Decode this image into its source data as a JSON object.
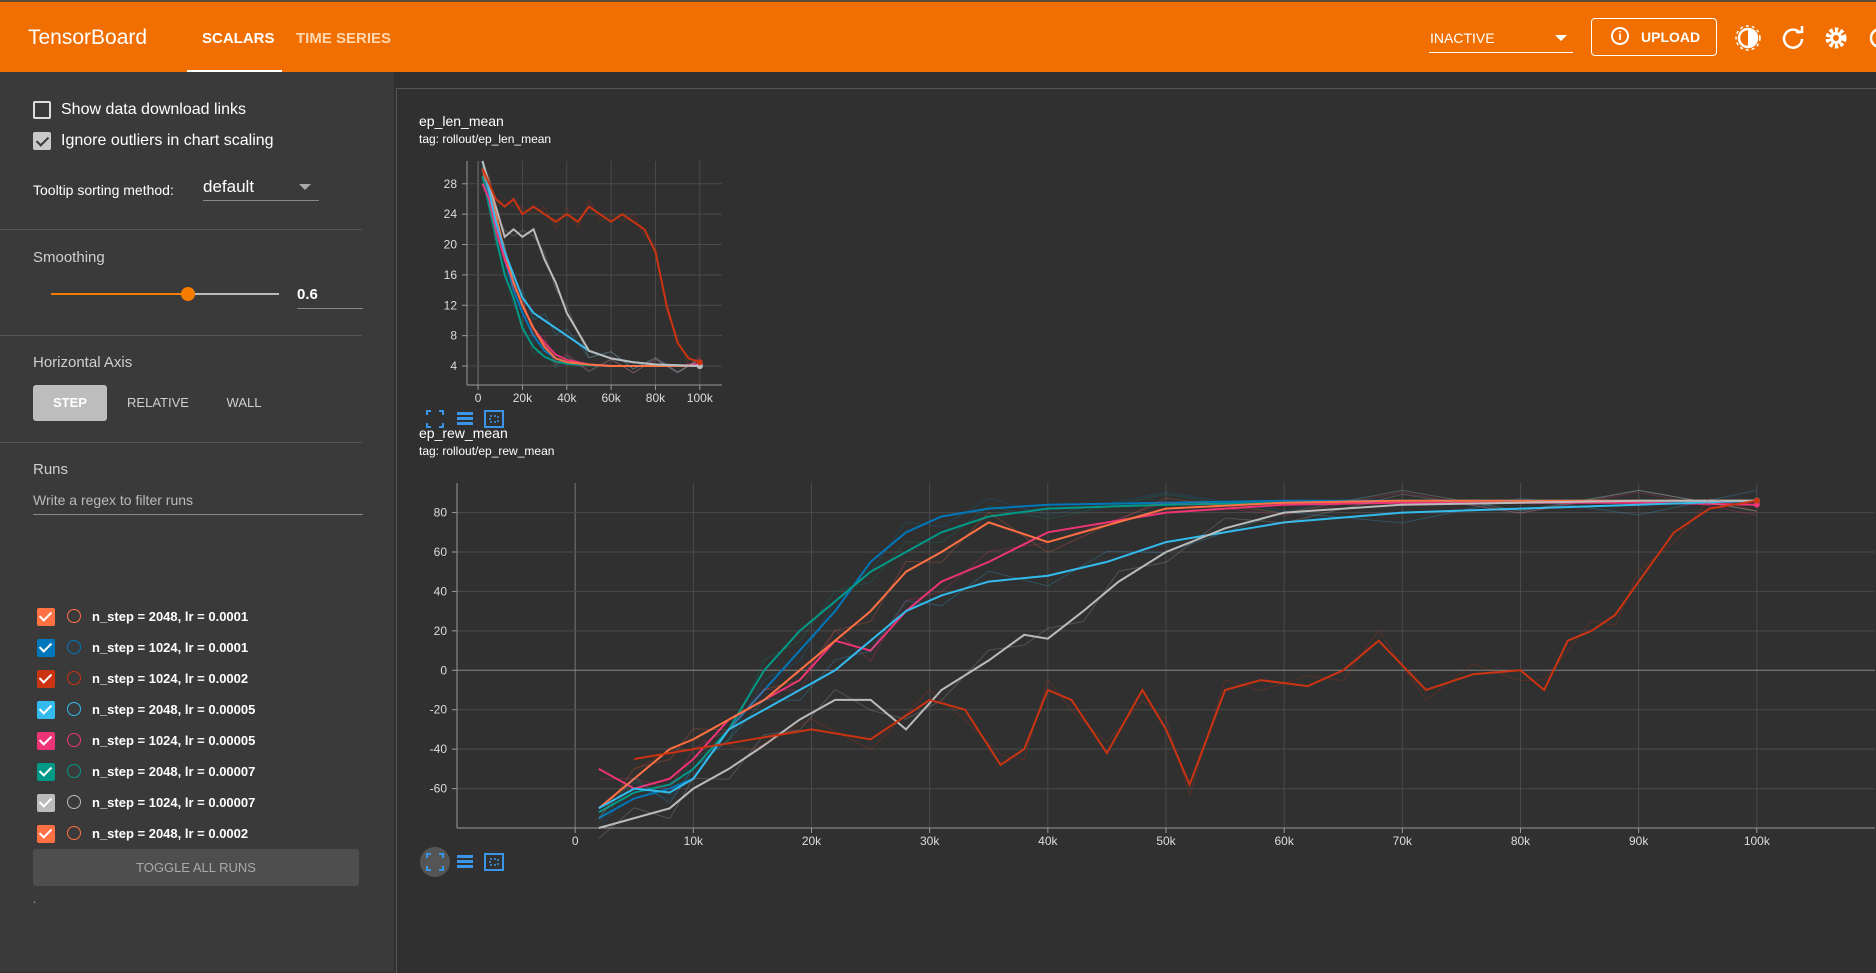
{
  "header": {
    "logo": "TensorBoard",
    "tabs": [
      "SCALARS",
      "TIME SERIES"
    ],
    "active_tab": "SCALARS",
    "status_select": "INACTIVE",
    "upload_label": "UPLOAD",
    "brand_color": "#f06f00"
  },
  "sidebar": {
    "show_links_label": "Show data download links",
    "show_links_checked": false,
    "ignore_outliers_label": "Ignore outliers in chart scaling",
    "ignore_outliers_checked": true,
    "tooltip_label": "Tooltip sorting method:",
    "tooltip_value": "default",
    "smoothing_label": "Smoothing",
    "smoothing_value": "0.6",
    "smoothing_fraction": 0.6,
    "haxis_label": "Horizontal Axis",
    "haxis_options": [
      "STEP",
      "RELATIVE",
      "WALL"
    ],
    "haxis_selected": "STEP",
    "runs_label": "Runs",
    "runs_filter_placeholder": "Write a regex to filter runs",
    "runs": [
      {
        "label": "n_step = 2048, lr = 0.0001",
        "color": "#ff7043"
      },
      {
        "label": "n_step = 1024, lr = 0.0001",
        "color": "#0077bb"
      },
      {
        "label": "n_step = 1024, lr = 0.0002",
        "color": "#cc3311"
      },
      {
        "label": "n_step = 2048, lr = 0.00005",
        "color": "#33bbee"
      },
      {
        "label": "n_step = 1024, lr = 0.00005",
        "color": "#ee3377"
      },
      {
        "label": "n_step = 2048, lr = 0.00007",
        "color": "#009988"
      },
      {
        "label": "n_step = 1024, lr = 0.00007",
        "color": "#bbbbbb"
      },
      {
        "label": "n_step = 2048, lr = 0.0002",
        "color": "#ff7043"
      }
    ],
    "toggle_all_label": "TOGGLE ALL RUNS",
    "footer_dot": "."
  },
  "cards": [
    {
      "title": "ep_len_mean",
      "tag": "tag: rollout/ep_len_mean"
    },
    {
      "title": "ep_rew_mean",
      "tag": "tag: rollout/ep_rew_mean"
    }
  ],
  "chart_data": [
    {
      "type": "line",
      "title": "ep_len_mean",
      "x_ticks": [
        "0",
        "20k",
        "40k",
        "60k",
        "80k",
        "100k"
      ],
      "y_ticks": [
        "4",
        "8",
        "12",
        "16",
        "20",
        "24",
        "28"
      ],
      "xlim": [
        -5000,
        110000
      ],
      "ylim": [
        1.5,
        31
      ],
      "grid": true,
      "series": [
        {
          "color": "#0077bb",
          "x": [
            2000,
            5000,
            8000,
            12000,
            16000,
            20000,
            25000,
            30000,
            35000,
            40000,
            50000,
            60000,
            70000,
            80000,
            90000,
            100000
          ],
          "y": [
            30,
            26,
            22,
            18,
            14,
            11,
            8,
            6,
            5,
            4.5,
            4.2,
            4,
            4,
            4,
            4,
            4
          ]
        },
        {
          "color": "#009988",
          "x": [
            2000,
            5000,
            8000,
            12000,
            16000,
            20000,
            25000,
            30000,
            35000,
            40000,
            50000,
            60000,
            70000,
            80000,
            90000,
            100000
          ],
          "y": [
            29,
            25,
            21,
            16,
            13,
            9,
            6.5,
            5.2,
            4.6,
            4.3,
            4.1,
            4,
            4,
            4,
            4,
            4
          ]
        },
        {
          "color": "#ee3377",
          "x": [
            2000,
            5000,
            8000,
            12000,
            16000,
            20000,
            25000,
            30000,
            35000,
            40000,
            50000,
            60000,
            70000,
            80000,
            90000,
            100000
          ],
          "y": [
            28,
            26,
            22,
            18,
            15,
            12,
            9,
            7,
            5.5,
            4.8,
            4.2,
            4,
            4,
            4,
            4,
            4.3
          ]
        },
        {
          "color": "#ff7043",
          "x": [
            2000,
            5000,
            8000,
            12000,
            16000,
            20000,
            25000,
            30000,
            35000,
            40000,
            50000,
            60000,
            70000,
            80000,
            90000,
            100000
          ],
          "y": [
            30,
            27,
            24,
            19,
            15,
            12,
            9,
            6.5,
            5,
            4.5,
            4.2,
            4,
            4,
            4,
            4,
            4
          ]
        },
        {
          "color": "#33bbee",
          "x": [
            2000,
            5000,
            8000,
            12000,
            16000,
            20000,
            25000,
            30000,
            35000,
            40000,
            50000,
            60000,
            70000,
            80000,
            90000,
            100000
          ],
          "y": [
            31,
            27,
            23,
            19,
            16,
            13,
            11,
            10,
            9,
            8,
            6,
            5,
            4.5,
            4.2,
            4.1,
            4
          ]
        },
        {
          "color": "#bbbbbb",
          "x": [
            2000,
            5000,
            8000,
            12000,
            16000,
            20000,
            25000,
            30000,
            35000,
            40000,
            50000,
            60000,
            70000,
            80000,
            90000,
            100000
          ],
          "y": [
            31,
            28,
            25,
            21,
            22,
            21,
            22,
            18,
            15,
            11,
            6,
            5,
            4.5,
            4.2,
            4.1,
            4
          ]
        },
        {
          "color": "#cc3311",
          "x": [
            2000,
            5000,
            8000,
            12000,
            16000,
            20000,
            25000,
            30000,
            35000,
            40000,
            45000,
            50000,
            55000,
            60000,
            65000,
            70000,
            75000,
            80000,
            85000,
            90000,
            95000,
            100000
          ],
          "y": [
            30,
            28,
            26,
            25,
            26,
            24,
            25,
            24,
            23,
            24,
            23,
            25,
            24,
            23,
            24,
            23,
            22,
            19,
            12,
            7,
            5,
            4.5
          ]
        }
      ]
    },
    {
      "type": "line",
      "title": "ep_rew_mean",
      "x_ticks": [
        "0",
        "10k",
        "20k",
        "30k",
        "40k",
        "50k",
        "60k",
        "70k",
        "80k",
        "90k",
        "100k"
      ],
      "y_ticks": [
        "-60",
        "-40",
        "-20",
        "0",
        "20",
        "40",
        "60",
        "80"
      ],
      "xlim": [
        -10000,
        110000
      ],
      "ylim": [
        -80,
        95
      ],
      "grid": true,
      "series": [
        {
          "color": "#0077bb",
          "x": [
            2000,
            5000,
            8000,
            10000,
            13000,
            16000,
            19000,
            22000,
            25000,
            28000,
            31000,
            35000,
            40000,
            50000,
            60000,
            70000,
            80000,
            90000,
            100000
          ],
          "y": [
            -75,
            -65,
            -60,
            -55,
            -30,
            -10,
            10,
            30,
            55,
            70,
            78,
            82,
            84,
            85,
            86,
            86,
            86,
            86,
            86
          ]
        },
        {
          "color": "#009988",
          "x": [
            2000,
            5000,
            8000,
            10000,
            13000,
            16000,
            19000,
            22000,
            25000,
            28000,
            31000,
            35000,
            40000,
            50000,
            60000,
            70000,
            80000,
            90000,
            100000
          ],
          "y": [
            -72,
            -62,
            -58,
            -50,
            -30,
            0,
            20,
            35,
            50,
            60,
            70,
            78,
            82,
            84,
            85,
            86,
            86,
            86,
            86
          ]
        },
        {
          "color": "#ee3377",
          "x": [
            2000,
            5000,
            8000,
            10000,
            13000,
            16000,
            19000,
            22000,
            25000,
            28000,
            31000,
            35000,
            40000,
            50000,
            60000,
            70000,
            80000,
            90000,
            100000
          ],
          "y": [
            -50,
            -60,
            -55,
            -45,
            -25,
            -15,
            -5,
            15,
            10,
            30,
            45,
            55,
            70,
            80,
            84,
            85,
            85,
            85,
            84
          ]
        },
        {
          "color": "#ff7043",
          "x": [
            2000,
            5000,
            8000,
            10000,
            13000,
            16000,
            19000,
            22000,
            25000,
            28000,
            31000,
            35000,
            40000,
            50000,
            60000,
            70000,
            80000,
            90000,
            100000
          ],
          "y": [
            -70,
            -55,
            -40,
            -35,
            -25,
            -15,
            0,
            15,
            30,
            50,
            60,
            75,
            65,
            82,
            85,
            86,
            86,
            86,
            86
          ]
        },
        {
          "color": "#33bbee",
          "x": [
            2000,
            5000,
            8000,
            10000,
            13000,
            16000,
            19000,
            22000,
            25000,
            28000,
            31000,
            35000,
            40000,
            45000,
            50000,
            60000,
            70000,
            80000,
            90000,
            100000
          ],
          "y": [
            -70,
            -60,
            -62,
            -55,
            -30,
            -20,
            -10,
            0,
            15,
            30,
            38,
            45,
            48,
            55,
            65,
            75,
            80,
            82,
            84,
            86
          ]
        },
        {
          "color": "#bbbbbb",
          "x": [
            2000,
            5000,
            8000,
            10000,
            13000,
            16000,
            19000,
            22000,
            25000,
            28000,
            31000,
            35000,
            38000,
            40000,
            43000,
            46000,
            50000,
            55000,
            60000,
            70000,
            80000,
            90000,
            100000
          ],
          "y": [
            -80,
            -75,
            -70,
            -60,
            -50,
            -38,
            -25,
            -15,
            -15,
            -30,
            -10,
            5,
            18,
            16,
            30,
            45,
            60,
            72,
            80,
            84,
            85,
            86,
            86
          ]
        },
        {
          "color": "#cc3311",
          "x": [
            5000,
            10000,
            15000,
            20000,
            25000,
            30000,
            33000,
            36000,
            38000,
            40000,
            42000,
            45000,
            48000,
            50000,
            52000,
            55000,
            58000,
            62000,
            65000,
            68000,
            72000,
            76000,
            80000,
            82000,
            84000,
            86000,
            88000,
            90000,
            93000,
            96000,
            100000
          ],
          "y": [
            -45,
            -40,
            -35,
            -30,
            -35,
            -15,
            -20,
            -48,
            -40,
            -10,
            -15,
            -42,
            -10,
            -30,
            -58,
            -10,
            -5,
            -8,
            0,
            15,
            -10,
            -2,
            0,
            -10,
            15,
            20,
            28,
            45,
            70,
            82,
            86
          ]
        }
      ]
    }
  ]
}
